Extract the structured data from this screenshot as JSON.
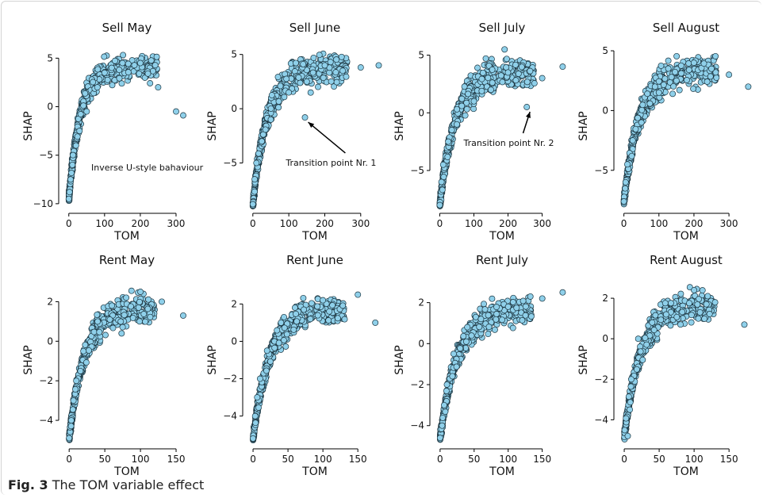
{
  "caption": {
    "label": "Fig. 3",
    "text": "The TOM variable effect"
  },
  "style": {
    "point_fill": "#8fd0ea",
    "point_stroke": "#1c3540",
    "axis_color": "#000000"
  },
  "chart_data": [
    {
      "type": "scatter",
      "title": "Sell May",
      "xlabel": "TOM",
      "ylabel": "SHAP",
      "xlim": [
        -15,
        340
      ],
      "ylim": [
        -10.5,
        6.5
      ],
      "xticks": [
        0,
        100,
        200,
        300
      ],
      "yticks": [
        -10,
        -5,
        0,
        5
      ],
      "annotations": [
        {
          "text": "Inverse U-style bahaviour"
        }
      ],
      "shape": {
        "xmax": 330,
        "k": 32,
        "A": 13.5,
        "ymin": -9.5,
        "spread": 1.4
      },
      "points": [
        [
          0,
          -9.5
        ],
        [
          2,
          -8.8
        ],
        [
          5,
          -7.5
        ],
        [
          10,
          -6
        ],
        [
          20,
          -4
        ],
        [
          30,
          -2.5
        ],
        [
          50,
          -0.5
        ],
        [
          80,
          2
        ],
        [
          100,
          3.5
        ],
        [
          120,
          4
        ],
        [
          150,
          4.5
        ],
        [
          200,
          4.5
        ],
        [
          250,
          2
        ],
        [
          300,
          -0.5
        ],
        [
          320,
          -0.9
        ]
      ]
    },
    {
      "type": "scatter",
      "title": "Sell June",
      "xlabel": "TOM",
      "ylabel": "SHAP",
      "xlim": [
        -15,
        360
      ],
      "ylim": [
        -9.2,
        6
      ],
      "xticks": [
        0,
        100,
        200,
        300
      ],
      "yticks": [
        -5,
        0,
        5
      ],
      "annotations": [
        {
          "text": "Transition point  Nr. 1",
          "arrow_to": [
            145,
            -0.8
          ]
        }
      ],
      "shape": {
        "xmax": 350,
        "k": 40,
        "A": 12.5,
        "ymin": -8.8,
        "spread": 1.3
      },
      "points": [
        [
          0,
          -8.8
        ],
        [
          5,
          -6.5
        ],
        [
          10,
          -5
        ],
        [
          25,
          -3
        ],
        [
          50,
          -1
        ],
        [
          100,
          1.5
        ],
        [
          145,
          -0.8
        ],
        [
          150,
          2.5
        ],
        [
          200,
          4
        ],
        [
          250,
          3.5
        ],
        [
          300,
          3.8
        ],
        [
          350,
          4
        ]
      ]
    },
    {
      "type": "scatter",
      "title": "Sell July",
      "xlabel": "TOM",
      "ylabel": "SHAP",
      "xlim": [
        -15,
        380
      ],
      "ylim": [
        -8.3,
        6
      ],
      "xticks": [
        0,
        100,
        200,
        300
      ],
      "yticks": [
        -5,
        0,
        5
      ],
      "annotations": [
        {
          "text": "Transition point  Nr. 2",
          "arrow_to": [
            255,
            0.5
          ]
        }
      ],
      "shape": {
        "xmax": 370,
        "k": 45,
        "A": 11.5,
        "ymin": -8,
        "spread": 1.3
      },
      "points": [
        [
          0,
          -8
        ],
        [
          5,
          -6
        ],
        [
          10,
          -4.5
        ],
        [
          25,
          -2.5
        ],
        [
          50,
          -1
        ],
        [
          100,
          1
        ],
        [
          150,
          2
        ],
        [
          190,
          5.5
        ],
        [
          200,
          3.5
        ],
        [
          255,
          0.5
        ],
        [
          300,
          3
        ],
        [
          360,
          4
        ]
      ]
    },
    {
      "type": "scatter",
      "title": "Sell August",
      "xlabel": "TOM",
      "ylabel": "SHAP",
      "xlim": [
        -15,
        370
      ],
      "ylim": [
        -8.2,
        5.6
      ],
      "xticks": [
        0,
        100,
        200,
        300
      ],
      "yticks": [
        -5,
        0,
        5
      ],
      "annotations": [],
      "shape": {
        "xmax": 355,
        "k": 45,
        "A": 11,
        "ymin": -7.6,
        "spread": 1.3
      },
      "points": [
        [
          0,
          -7.6
        ],
        [
          5,
          -6
        ],
        [
          10,
          -4.5
        ],
        [
          25,
          -2.5
        ],
        [
          50,
          -1
        ],
        [
          100,
          1.5
        ],
        [
          150,
          2.5
        ],
        [
          200,
          4
        ],
        [
          250,
          3.5
        ],
        [
          300,
          3
        ],
        [
          355,
          2
        ]
      ]
    },
    {
      "type": "scatter",
      "title": "Rent May",
      "xlabel": "TOM",
      "ylabel": "SHAP",
      "xlim": [
        -8,
        170
      ],
      "ylim": [
        -5.2,
        3.3
      ],
      "xticks": [
        0,
        50,
        100,
        150
      ],
      "yticks": [
        -4,
        -2,
        0,
        2
      ],
      "annotations": [],
      "shape": {
        "xmax": 160,
        "k": 22,
        "A": 6.6,
        "ymin": -4.9,
        "spread": 0.7
      },
      "points": [
        [
          0,
          -4.9
        ],
        [
          3,
          -4
        ],
        [
          6,
          -3
        ],
        [
          10,
          -2
        ],
        [
          20,
          -0.5
        ],
        [
          40,
          1
        ],
        [
          60,
          1.8
        ],
        [
          80,
          2.2
        ],
        [
          100,
          2.5
        ],
        [
          130,
          2
        ],
        [
          160,
          1.3
        ]
      ]
    },
    {
      "type": "scatter",
      "title": "Rent June",
      "xlabel": "TOM",
      "ylabel": "SHAP",
      "xlim": [
        -8,
        185
      ],
      "ylim": [
        -5.5,
        3.5
      ],
      "xticks": [
        0,
        50,
        100,
        150
      ],
      "yticks": [
        -4,
        -2,
        0,
        2
      ],
      "annotations": [],
      "shape": {
        "xmax": 175,
        "k": 24,
        "A": 6.9,
        "ymin": -5.2,
        "spread": 0.7
      },
      "points": [
        [
          0,
          -5.2
        ],
        [
          3,
          -4
        ],
        [
          6,
          -3
        ],
        [
          10,
          -2
        ],
        [
          20,
          -0.5
        ],
        [
          40,
          1
        ],
        [
          60,
          1.8
        ],
        [
          100,
          2.2
        ],
        [
          150,
          2.5
        ],
        [
          175,
          1
        ]
      ]
    },
    {
      "type": "scatter",
      "title": "Rent July",
      "xlabel": "TOM",
      "ylabel": "SHAP",
      "xlim": [
        -8,
        190
      ],
      "ylim": [
        -4.9,
        3.3
      ],
      "xticks": [
        0,
        50,
        100,
        150
      ],
      "yticks": [
        -4,
        -2,
        0,
        2
      ],
      "annotations": [],
      "shape": {
        "xmax": 180,
        "k": 26,
        "A": 6.3,
        "ymin": -4.6,
        "spread": 0.7
      },
      "points": [
        [
          0,
          -4.6
        ],
        [
          3,
          -4
        ],
        [
          6,
          -3
        ],
        [
          10,
          -2
        ],
        [
          20,
          -0.5
        ],
        [
          40,
          0.8
        ],
        [
          60,
          1.2
        ],
        [
          100,
          1.8
        ],
        [
          150,
          2.2
        ],
        [
          180,
          2.5
        ]
      ]
    },
    {
      "type": "scatter",
      "title": "Rent August",
      "xlabel": "TOM",
      "ylabel": "SHAP",
      "xlim": [
        -8,
        185
      ],
      "ylim": [
        -5.2,
        3.1
      ],
      "xticks": [
        0,
        50,
        100,
        150
      ],
      "yticks": [
        -4,
        -2,
        0,
        2
      ],
      "annotations": [],
      "shape": {
        "xmax": 172,
        "k": 24,
        "A": 6.5,
        "ymin": -4.8,
        "spread": 0.7
      },
      "points": [
        [
          5,
          -4.8
        ],
        [
          8,
          -3.5
        ],
        [
          10,
          -2
        ],
        [
          20,
          0
        ],
        [
          40,
          0.8
        ],
        [
          60,
          1.2
        ],
        [
          100,
          2.4
        ],
        [
          130,
          1.8
        ],
        [
          172,
          0.7
        ]
      ]
    }
  ]
}
